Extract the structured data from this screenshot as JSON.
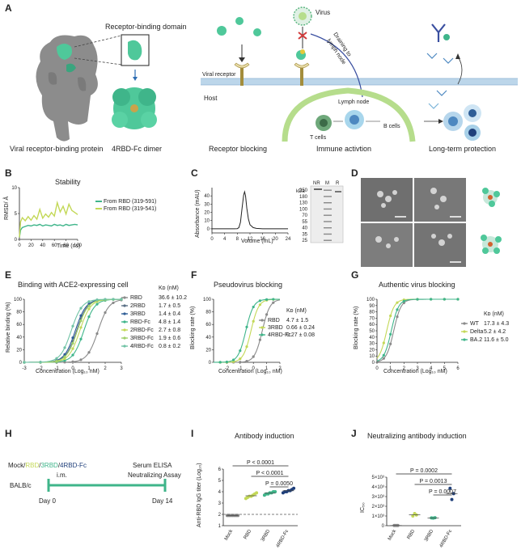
{
  "panel_labels": [
    "A",
    "B",
    "C",
    "D",
    "E",
    "F",
    "G",
    "H",
    "I",
    "J"
  ],
  "panel_a": {
    "rbd_title": "Receptor-binding domain",
    "captions": [
      "Viral receptor-binding protein",
      "4RBD-Fc dimer",
      "Receptor blocking",
      "Immune activtion",
      "Long-term protection"
    ],
    "labels": {
      "virus": "Virus",
      "draining_line1": "Draining to",
      "draining_line2": "lymph node",
      "viral_receptor": "Viral receptor",
      "host": "Host",
      "lymph_node": "Lymph node",
      "t_cells": "T cells",
      "b_cells": "B cells"
    },
    "colors": {
      "spike": "#8c8c8c",
      "rbd": "#4fc89a",
      "membrane": "#bcd6ea",
      "lymph": "#b6dd8c"
    }
  },
  "panel_b": {
    "chart_data": {
      "type": "line",
      "title": "Stability",
      "xlabel": "Time (ns)",
      "ylabel": "RMSD/ Å",
      "xlim": [
        0,
        100
      ],
      "ylim": [
        0,
        10
      ],
      "x_ticks": [
        0,
        20,
        40,
        60,
        80,
        100
      ],
      "y_ticks": [
        0,
        5,
        10
      ],
      "series": [
        {
          "name": "From RBD (319-591)",
          "color": "#3fb58a",
          "x": [
            0,
            2,
            5,
            10,
            15,
            20,
            25,
            30,
            35,
            40,
            45,
            50,
            55,
            60,
            65,
            70,
            75,
            80,
            85,
            90,
            95,
            100
          ],
          "y": [
            0.4,
            1.8,
            2.3,
            2.5,
            2.7,
            2.6,
            2.8,
            2.7,
            2.9,
            2.6,
            2.8,
            2.7,
            2.6,
            2.9,
            2.7,
            2.8,
            2.6,
            2.9,
            2.7,
            2.8,
            2.9,
            2.8
          ]
        },
        {
          "name": "From RBD (319-541)",
          "color": "#c3d857",
          "x": [
            0,
            2,
            5,
            10,
            15,
            20,
            25,
            30,
            35,
            40,
            45,
            50,
            55,
            60,
            65,
            70,
            75,
            80,
            85,
            90,
            95,
            100
          ],
          "y": [
            0.4,
            3.4,
            4.2,
            3.6,
            4.4,
            3.7,
            4.6,
            3.9,
            5.8,
            4.1,
            4.9,
            4.3,
            5.2,
            4.5,
            7.1,
            5.3,
            6.4,
            4.9,
            6.8,
            5.6,
            5.2,
            4.8
          ]
        }
      ]
    }
  },
  "panel_c": {
    "chart_data": {
      "type": "line",
      "xlabel": "Volume (mL)",
      "ylabel": "Absorbance (mAU)",
      "xlim": [
        0,
        24
      ],
      "ylim": [
        -5,
        50
      ],
      "x_ticks": [
        0,
        4,
        8,
        12,
        16,
        20,
        24
      ],
      "y_ticks": [
        0,
        10,
        20,
        30,
        40
      ],
      "series": [
        {
          "x": [
            0,
            4,
            7,
            8,
            8.5,
            9,
            9.5,
            10,
            10.3,
            10.6,
            11,
            11.5,
            12,
            13,
            14,
            16,
            20,
            24
          ],
          "y": [
            0,
            0,
            0,
            0.2,
            1.5,
            8,
            25,
            41,
            45,
            40,
            25,
            12,
            5,
            1.5,
            0.5,
            0,
            0,
            0
          ]
        }
      ]
    },
    "gel": {
      "lane_labels": [
        "NR",
        "M",
        "R"
      ],
      "unit": "kDa",
      "markers": [
        "250",
        "180",
        "130",
        "100",
        "70",
        "55",
        "40",
        "35",
        "25"
      ]
    }
  },
  "panel_e": {
    "chart_data": {
      "type": "line",
      "title": "Binding with ACE2-expressing cell",
      "xlabel": "Concentration (Log₁₀ nM)",
      "ylabel": "Relative binding (%)",
      "xlim": [
        -3,
        3
      ],
      "ylim": [
        0,
        100
      ],
      "x_ticks": [
        -3,
        -2,
        -1,
        0,
        1,
        2,
        3
      ],
      "y_ticks": [
        0,
        20,
        40,
        60,
        80,
        100
      ],
      "kd_header": "Kᴅ (nM)",
      "series": [
        {
          "name": "RBD",
          "kd": "36.6 ± 10.2",
          "color": "#8a8a8a",
          "ec50": 1.56
        },
        {
          "name": "2RBD",
          "kd": "1.7 ± 0.5",
          "color": "#5a6f86",
          "ec50": 0.23
        },
        {
          "name": "3RBD",
          "kd": "1.4 ± 0.4",
          "color": "#2f5e97",
          "ec50": 0.15
        },
        {
          "name": "RBD-Fc",
          "kd": "4.8 ± 1.4",
          "color": "#3fb58a",
          "ec50": 0.68
        },
        {
          "name": "2RBD-Fc",
          "kd": "2.7 ± 0.8",
          "color": "#c3d857",
          "ec50": 0.43
        },
        {
          "name": "3RBD-Fc",
          "kd": "1.9 ± 0.6",
          "color": "#9fcf6a",
          "ec50": 0.28
        },
        {
          "name": "4RBD-Fc",
          "kd": "0.8 ± 0.2",
          "color": "#70c3a5",
          "ec50": -0.1
        }
      ]
    }
  },
  "panel_f": {
    "chart_data": {
      "type": "line",
      "title": "Pseudovirus blocking",
      "xlabel": "Concentration (Log₁₀ nM)",
      "ylabel": "Blocking rate (%)",
      "xlim": [
        -3,
        2
      ],
      "ylim": [
        0,
        100
      ],
      "x_ticks": [
        -2,
        -1,
        0,
        1,
        2
      ],
      "y_ticks": [
        0,
        20,
        40,
        60,
        80,
        100
      ],
      "kd_header": "Kᴅ (nM)",
      "series": [
        {
          "name": "RBD",
          "kd": "4.7 ± 1.5",
          "color": "#8a8a8a",
          "ec50": 0.67
        },
        {
          "name": "3RBD",
          "kd": "0.66 ± 0.24",
          "color": "#c3d857",
          "ec50": -0.18
        },
        {
          "name": "4RBD-Fc",
          "kd": "0.27 ± 0.08",
          "color": "#3fb58a",
          "ec50": -0.57
        }
      ]
    }
  },
  "panel_g": {
    "chart_data": {
      "type": "line",
      "title": "Authentic virus blocking",
      "xlabel": "Concentration (Log₁₀ nM)",
      "ylabel": "Blocking rate (%)",
      "xlim": [
        0,
        6
      ],
      "ylim": [
        0,
        100
      ],
      "x_ticks": [
        0,
        1,
        2,
        3,
        4,
        5,
        6
      ],
      "y_ticks": [
        0,
        10,
        20,
        30,
        40,
        50,
        60,
        70,
        80,
        90,
        100
      ],
      "kd_header": "Kᴅ (nM)",
      "series": [
        {
          "name": "WT",
          "kd": "17.3 ± 4.3",
          "color": "#8a8a8a",
          "ec50": 1.24
        },
        {
          "name": "Delta",
          "kd": "5.2 ± 4.2",
          "color": "#c3d857",
          "ec50": 0.72
        },
        {
          "name": "BA.2",
          "kd": "11.6 ± 5.0",
          "color": "#3fb58a",
          "ec50": 1.06
        }
      ]
    }
  },
  "panel_h": {
    "groups": [
      {
        "text": "Mock/",
        "color": "#222222"
      },
      {
        "text": "RBD",
        "color": "#c3d857"
      },
      {
        "text": "/",
        "color": "#222222"
      },
      {
        "text": "3RBD",
        "color": "#3fb58a"
      },
      {
        "text": "/",
        "color": "#222222"
      },
      {
        "text": "4RBD-Fc",
        "color": "#1f3f7a"
      }
    ],
    "route": "i.m.",
    "assays_line1": "Serum ELISA",
    "assays_line2": "Neutralizing Assay",
    "mouse": "BALB/c",
    "day0": "Day 0",
    "day14": "Day 14"
  },
  "panel_i": {
    "chart_data": {
      "type": "scatter",
      "title": "Antibody induction",
      "ylabel": "Anti-RBD IgG titer (Log₁₀)",
      "categories": [
        "Mock",
        "RBD",
        "3RBD",
        "4RBD-Fc"
      ],
      "ylim": [
        1,
        6
      ],
      "y_ticks": [
        1,
        2,
        3,
        4,
        5,
        6
      ],
      "colors": [
        "#8a8a8a",
        "#c3d857",
        "#3fb58a",
        "#1f3f7a"
      ],
      "points": [
        [
          1.9,
          1.9,
          1.9,
          1.9,
          1.9,
          1.9,
          1.9
        ],
        [
          3.4,
          3.5,
          3.6,
          3.6,
          3.7,
          3.8,
          3.9
        ],
        [
          3.7,
          3.8,
          3.8,
          3.9,
          3.9,
          4.0,
          4.0
        ],
        [
          3.9,
          4.0,
          4.0,
          4.1,
          4.1,
          4.2,
          4.3
        ]
      ],
      "dashed_line": 2.0,
      "significance": [
        {
          "from": 0,
          "to": 3,
          "text": "P < 0.0001"
        },
        {
          "from": 1,
          "to": 3,
          "text": "P < 0.0001"
        },
        {
          "from": 2,
          "to": 3,
          "text": "P = 0.0050"
        }
      ]
    }
  },
  "panel_j": {
    "chart_data": {
      "type": "scatter",
      "title": "Neutralizing antibody induction",
      "ylabel": "IC₅₀",
      "categories": [
        "Mock",
        "RBD",
        "3RBD",
        "4RBD-Fc"
      ],
      "ylim": [
        0,
        5000
      ],
      "y_tick_labels": [
        "0",
        "1×10³",
        "2×10³",
        "3×10³",
        "4×10³",
        "5×10³"
      ],
      "colors": [
        "#8a8a8a",
        "#c3d857",
        "#3fb58a",
        "#1f3f7a"
      ],
      "points": [
        [
          20,
          20,
          20
        ],
        [
          1000,
          1250,
          1100
        ],
        [
          800,
          780,
          820
        ],
        [
          3850,
          2700,
          3300
        ]
      ],
      "significance": [
        {
          "from": 0,
          "to": 3,
          "text": "P = 0.0002"
        },
        {
          "from": 1,
          "to": 3,
          "text": "P = 0.0013"
        },
        {
          "from": 2,
          "to": 3,
          "text": "P = 0.0007"
        }
      ]
    }
  }
}
